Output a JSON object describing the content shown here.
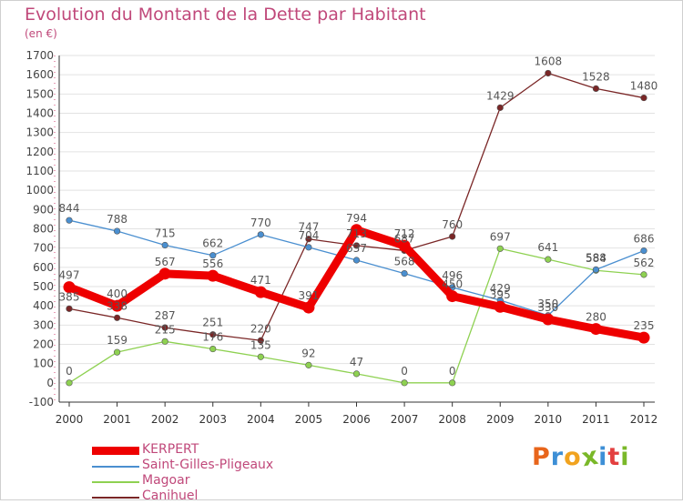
{
  "header": {
    "title": "Evolution du Montant de la Dette par Habitant",
    "unit": "(en €)"
  },
  "logo": {
    "text": "Proxiti",
    "colors": [
      "#e8651b",
      "#3d8fd6",
      "#f1a31f",
      "#7ab829",
      "#3d8fd6",
      "#e33f3f",
      "#7ab829"
    ]
  },
  "chart_data": {
    "type": "line",
    "title": "Evolution du Montant de la Dette par Habitant",
    "subtitle": "(en €)",
    "xlabel": "",
    "ylabel": "",
    "ylim": [
      -100,
      1700
    ],
    "yticks": [
      -100,
      0,
      100,
      200,
      300,
      400,
      500,
      600,
      700,
      800,
      900,
      1000,
      1100,
      1200,
      1300,
      1400,
      1500,
      1600,
      1700
    ],
    "grid": "horizontal",
    "legend_position": "bottom-left",
    "x": [
      "2000",
      "2001",
      "2002",
      "2003",
      "2004",
      "2005",
      "2006",
      "2007",
      "2008",
      "2009",
      "2010",
      "2011",
      "2012"
    ],
    "series": [
      {
        "name": "KERPERT",
        "color": "#ee0000",
        "values": [
          497,
          400,
          567,
          556,
          471,
          391,
          794,
          712,
          450,
          395,
          330,
          280,
          235
        ],
        "labels": [
          "497",
          "400",
          "567",
          "556",
          "471",
          "391",
          "794",
          "712",
          "450",
          "395",
          "330",
          "280",
          "235"
        ]
      },
      {
        "name": "Saint-Gilles-Pligeaux",
        "color": "#4a8fd0",
        "values": [
          844,
          788,
          715,
          662,
          770,
          704,
          637,
          568,
          496,
          429,
          350,
          588,
          686
        ],
        "labels": [
          "844",
          "788",
          "715",
          "662",
          "770",
          "704",
          "637",
          "568",
          "496",
          "429",
          "350",
          "588",
          "686"
        ]
      },
      {
        "name": "Magoar",
        "color": "#8ed151",
        "values": [
          0,
          159,
          215,
          176,
          135,
          92,
          47,
          0,
          0,
          697,
          641,
          584,
          562
        ],
        "labels": [
          "0",
          "159",
          "215",
          "176",
          "135",
          "92",
          "47",
          "0",
          "0",
          "697",
          "641",
          "584",
          "562"
        ]
      },
      {
        "name": "Canihuel",
        "color": "#7a2626",
        "values": [
          385,
          338,
          287,
          251,
          220,
          747,
          713,
          687,
          760,
          1429,
          1608,
          1528,
          1480
        ],
        "labels": [
          "385",
          "338",
          "287",
          "251",
          "220",
          "747",
          "713",
          "687",
          "760",
          "1429",
          "1608",
          "1528",
          "1480"
        ]
      }
    ]
  }
}
